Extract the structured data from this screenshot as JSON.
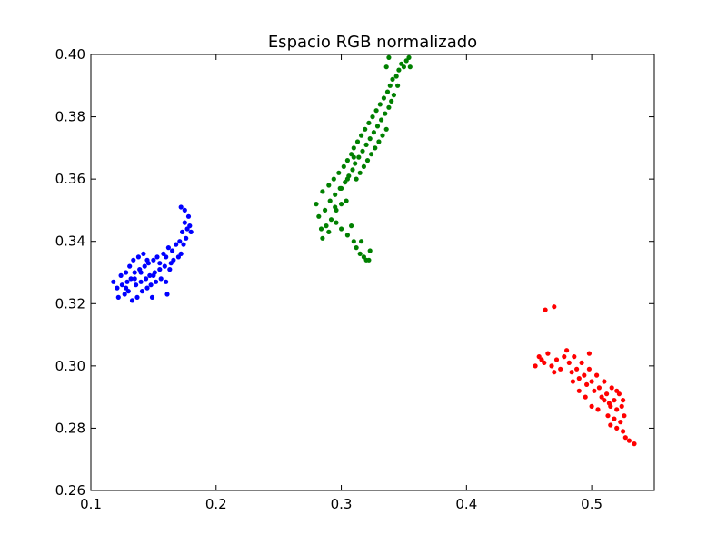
{
  "chart_data": {
    "type": "scatter",
    "title": "Espacio RGB normalizado",
    "xlabel": "",
    "ylabel": "",
    "xlim": [
      0.1,
      0.55
    ],
    "ylim": [
      0.26,
      0.4
    ],
    "x_ticks": [
      0.1,
      0.2,
      0.3,
      0.4,
      0.5
    ],
    "x_tick_labels": [
      "0.1",
      "0.2",
      "0.3",
      "0.4",
      "0.5"
    ],
    "y_ticks": [
      0.26,
      0.28,
      0.3,
      0.32,
      0.34,
      0.36,
      0.38,
      0.4
    ],
    "y_tick_labels": [
      "0.26",
      "0.28",
      "0.30",
      "0.32",
      "0.34",
      "0.36",
      "0.38",
      "0.40"
    ],
    "grid": false,
    "legend": "none",
    "series": [
      {
        "color": "#0000ff",
        "points": [
          [
            0.118,
            0.327
          ],
          [
            0.121,
            0.325
          ],
          [
            0.122,
            0.322
          ],
          [
            0.124,
            0.329
          ],
          [
            0.125,
            0.326
          ],
          [
            0.127,
            0.323
          ],
          [
            0.128,
            0.33
          ],
          [
            0.129,
            0.327
          ],
          [
            0.13,
            0.324
          ],
          [
            0.131,
            0.332
          ],
          [
            0.132,
            0.328
          ],
          [
            0.133,
            0.321
          ],
          [
            0.134,
            0.334
          ],
          [
            0.135,
            0.33
          ],
          [
            0.136,
            0.326
          ],
          [
            0.137,
            0.322
          ],
          [
            0.138,
            0.335
          ],
          [
            0.139,
            0.331
          ],
          [
            0.14,
            0.327
          ],
          [
            0.141,
            0.324
          ],
          [
            0.142,
            0.336
          ],
          [
            0.143,
            0.332
          ],
          [
            0.144,
            0.328
          ],
          [
            0.145,
            0.325
          ],
          [
            0.146,
            0.333
          ],
          [
            0.147,
            0.329
          ],
          [
            0.148,
            0.326
          ],
          [
            0.149,
            0.322
          ],
          [
            0.15,
            0.334
          ],
          [
            0.151,
            0.33
          ],
          [
            0.152,
            0.327
          ],
          [
            0.153,
            0.335
          ],
          [
            0.155,
            0.331
          ],
          [
            0.156,
            0.328
          ],
          [
            0.158,
            0.336
          ],
          [
            0.159,
            0.332
          ],
          [
            0.16,
            0.327
          ],
          [
            0.161,
            0.323
          ],
          [
            0.162,
            0.338
          ],
          [
            0.164,
            0.333
          ],
          [
            0.165,
            0.337
          ],
          [
            0.166,
            0.334
          ],
          [
            0.168,
            0.339
          ],
          [
            0.17,
            0.335
          ],
          [
            0.171,
            0.34
          ],
          [
            0.172,
            0.336
          ],
          [
            0.173,
            0.343
          ],
          [
            0.174,
            0.339
          ],
          [
            0.175,
            0.346
          ],
          [
            0.176,
            0.341
          ],
          [
            0.177,
            0.344
          ],
          [
            0.178,
            0.348
          ],
          [
            0.179,
            0.345
          ],
          [
            0.18,
            0.343
          ],
          [
            0.172,
            0.351
          ],
          [
            0.175,
            0.35
          ],
          [
            0.14,
            0.33
          ],
          [
            0.145,
            0.334
          ],
          [
            0.15,
            0.329
          ],
          [
            0.135,
            0.328
          ],
          [
            0.128,
            0.325
          ],
          [
            0.155,
            0.333
          ],
          [
            0.16,
            0.335
          ],
          [
            0.163,
            0.331
          ]
        ]
      },
      {
        "color": "#008000",
        "points": [
          [
            0.28,
            0.352
          ],
          [
            0.282,
            0.348
          ],
          [
            0.284,
            0.344
          ],
          [
            0.285,
            0.356
          ],
          [
            0.287,
            0.35
          ],
          [
            0.288,
            0.345
          ],
          [
            0.29,
            0.358
          ],
          [
            0.291,
            0.353
          ],
          [
            0.292,
            0.347
          ],
          [
            0.294,
            0.36
          ],
          [
            0.295,
            0.355
          ],
          [
            0.296,
            0.35
          ],
          [
            0.298,
            0.362
          ],
          [
            0.299,
            0.357
          ],
          [
            0.3,
            0.352
          ],
          [
            0.302,
            0.364
          ],
          [
            0.303,
            0.359
          ],
          [
            0.304,
            0.353
          ],
          [
            0.305,
            0.366
          ],
          [
            0.306,
            0.361
          ],
          [
            0.308,
            0.368
          ],
          [
            0.309,
            0.363
          ],
          [
            0.31,
            0.37
          ],
          [
            0.311,
            0.365
          ],
          [
            0.312,
            0.36
          ],
          [
            0.313,
            0.372
          ],
          [
            0.314,
            0.367
          ],
          [
            0.315,
            0.362
          ],
          [
            0.316,
            0.374
          ],
          [
            0.317,
            0.369
          ],
          [
            0.318,
            0.364
          ],
          [
            0.319,
            0.376
          ],
          [
            0.32,
            0.371
          ],
          [
            0.321,
            0.366
          ],
          [
            0.322,
            0.378
          ],
          [
            0.323,
            0.373
          ],
          [
            0.324,
            0.368
          ],
          [
            0.325,
            0.38
          ],
          [
            0.326,
            0.375
          ],
          [
            0.327,
            0.37
          ],
          [
            0.328,
            0.382
          ],
          [
            0.329,
            0.377
          ],
          [
            0.33,
            0.372
          ],
          [
            0.331,
            0.384
          ],
          [
            0.332,
            0.379
          ],
          [
            0.333,
            0.374
          ],
          [
            0.334,
            0.386
          ],
          [
            0.335,
            0.381
          ],
          [
            0.336,
            0.376
          ],
          [
            0.337,
            0.388
          ],
          [
            0.338,
            0.383
          ],
          [
            0.339,
            0.39
          ],
          [
            0.34,
            0.385
          ],
          [
            0.341,
            0.392
          ],
          [
            0.342,
            0.387
          ],
          [
            0.344,
            0.393
          ],
          [
            0.346,
            0.395
          ],
          [
            0.348,
            0.397
          ],
          [
            0.35,
            0.396
          ],
          [
            0.352,
            0.398
          ],
          [
            0.354,
            0.399
          ],
          [
            0.338,
            0.399
          ],
          [
            0.336,
            0.396
          ],
          [
            0.3,
            0.344
          ],
          [
            0.305,
            0.342
          ],
          [
            0.31,
            0.34
          ],
          [
            0.312,
            0.338
          ],
          [
            0.315,
            0.336
          ],
          [
            0.318,
            0.335
          ],
          [
            0.32,
            0.334
          ],
          [
            0.322,
            0.334
          ],
          [
            0.323,
            0.337
          ],
          [
            0.316,
            0.34
          ],
          [
            0.308,
            0.345
          ],
          [
            0.296,
            0.346
          ],
          [
            0.29,
            0.343
          ],
          [
            0.285,
            0.341
          ],
          [
            0.355,
            0.396
          ],
          [
            0.345,
            0.39
          ],
          [
            0.31,
            0.367
          ],
          [
            0.295,
            0.351
          ],
          [
            0.3,
            0.357
          ],
          [
            0.305,
            0.36
          ]
        ]
      },
      {
        "color": "#ff0000",
        "points": [
          [
            0.455,
            0.3
          ],
          [
            0.458,
            0.303
          ],
          [
            0.462,
            0.301
          ],
          [
            0.465,
            0.304
          ],
          [
            0.468,
            0.3
          ],
          [
            0.47,
            0.298
          ],
          [
            0.472,
            0.302
          ],
          [
            0.475,
            0.299
          ],
          [
            0.478,
            0.303
          ],
          [
            0.48,
            0.305
          ],
          [
            0.482,
            0.301
          ],
          [
            0.484,
            0.298
          ],
          [
            0.486,
            0.303
          ],
          [
            0.488,
            0.299
          ],
          [
            0.49,
            0.296
          ],
          [
            0.492,
            0.301
          ],
          [
            0.494,
            0.297
          ],
          [
            0.496,
            0.294
          ],
          [
            0.498,
            0.299
          ],
          [
            0.5,
            0.295
          ],
          [
            0.502,
            0.292
          ],
          [
            0.504,
            0.297
          ],
          [
            0.506,
            0.293
          ],
          [
            0.508,
            0.29
          ],
          [
            0.51,
            0.295
          ],
          [
            0.512,
            0.291
          ],
          [
            0.514,
            0.288
          ],
          [
            0.516,
            0.293
          ],
          [
            0.518,
            0.289
          ],
          [
            0.52,
            0.286
          ],
          [
            0.522,
            0.291
          ],
          [
            0.524,
            0.287
          ],
          [
            0.526,
            0.284
          ],
          [
            0.513,
            0.284
          ],
          [
            0.515,
            0.281
          ],
          [
            0.518,
            0.283
          ],
          [
            0.52,
            0.28
          ],
          [
            0.523,
            0.282
          ],
          [
            0.525,
            0.279
          ],
          [
            0.527,
            0.277
          ],
          [
            0.53,
            0.276
          ],
          [
            0.534,
            0.275
          ],
          [
            0.5,
            0.287
          ],
          [
            0.505,
            0.286
          ],
          [
            0.495,
            0.29
          ],
          [
            0.49,
            0.292
          ],
          [
            0.485,
            0.295
          ],
          [
            0.51,
            0.289
          ],
          [
            0.515,
            0.287
          ],
          [
            0.52,
            0.292
          ],
          [
            0.525,
            0.289
          ],
          [
            0.463,
            0.318
          ],
          [
            0.47,
            0.319
          ],
          [
            0.46,
            0.302
          ],
          [
            0.498,
            0.304
          ]
        ]
      }
    ]
  }
}
